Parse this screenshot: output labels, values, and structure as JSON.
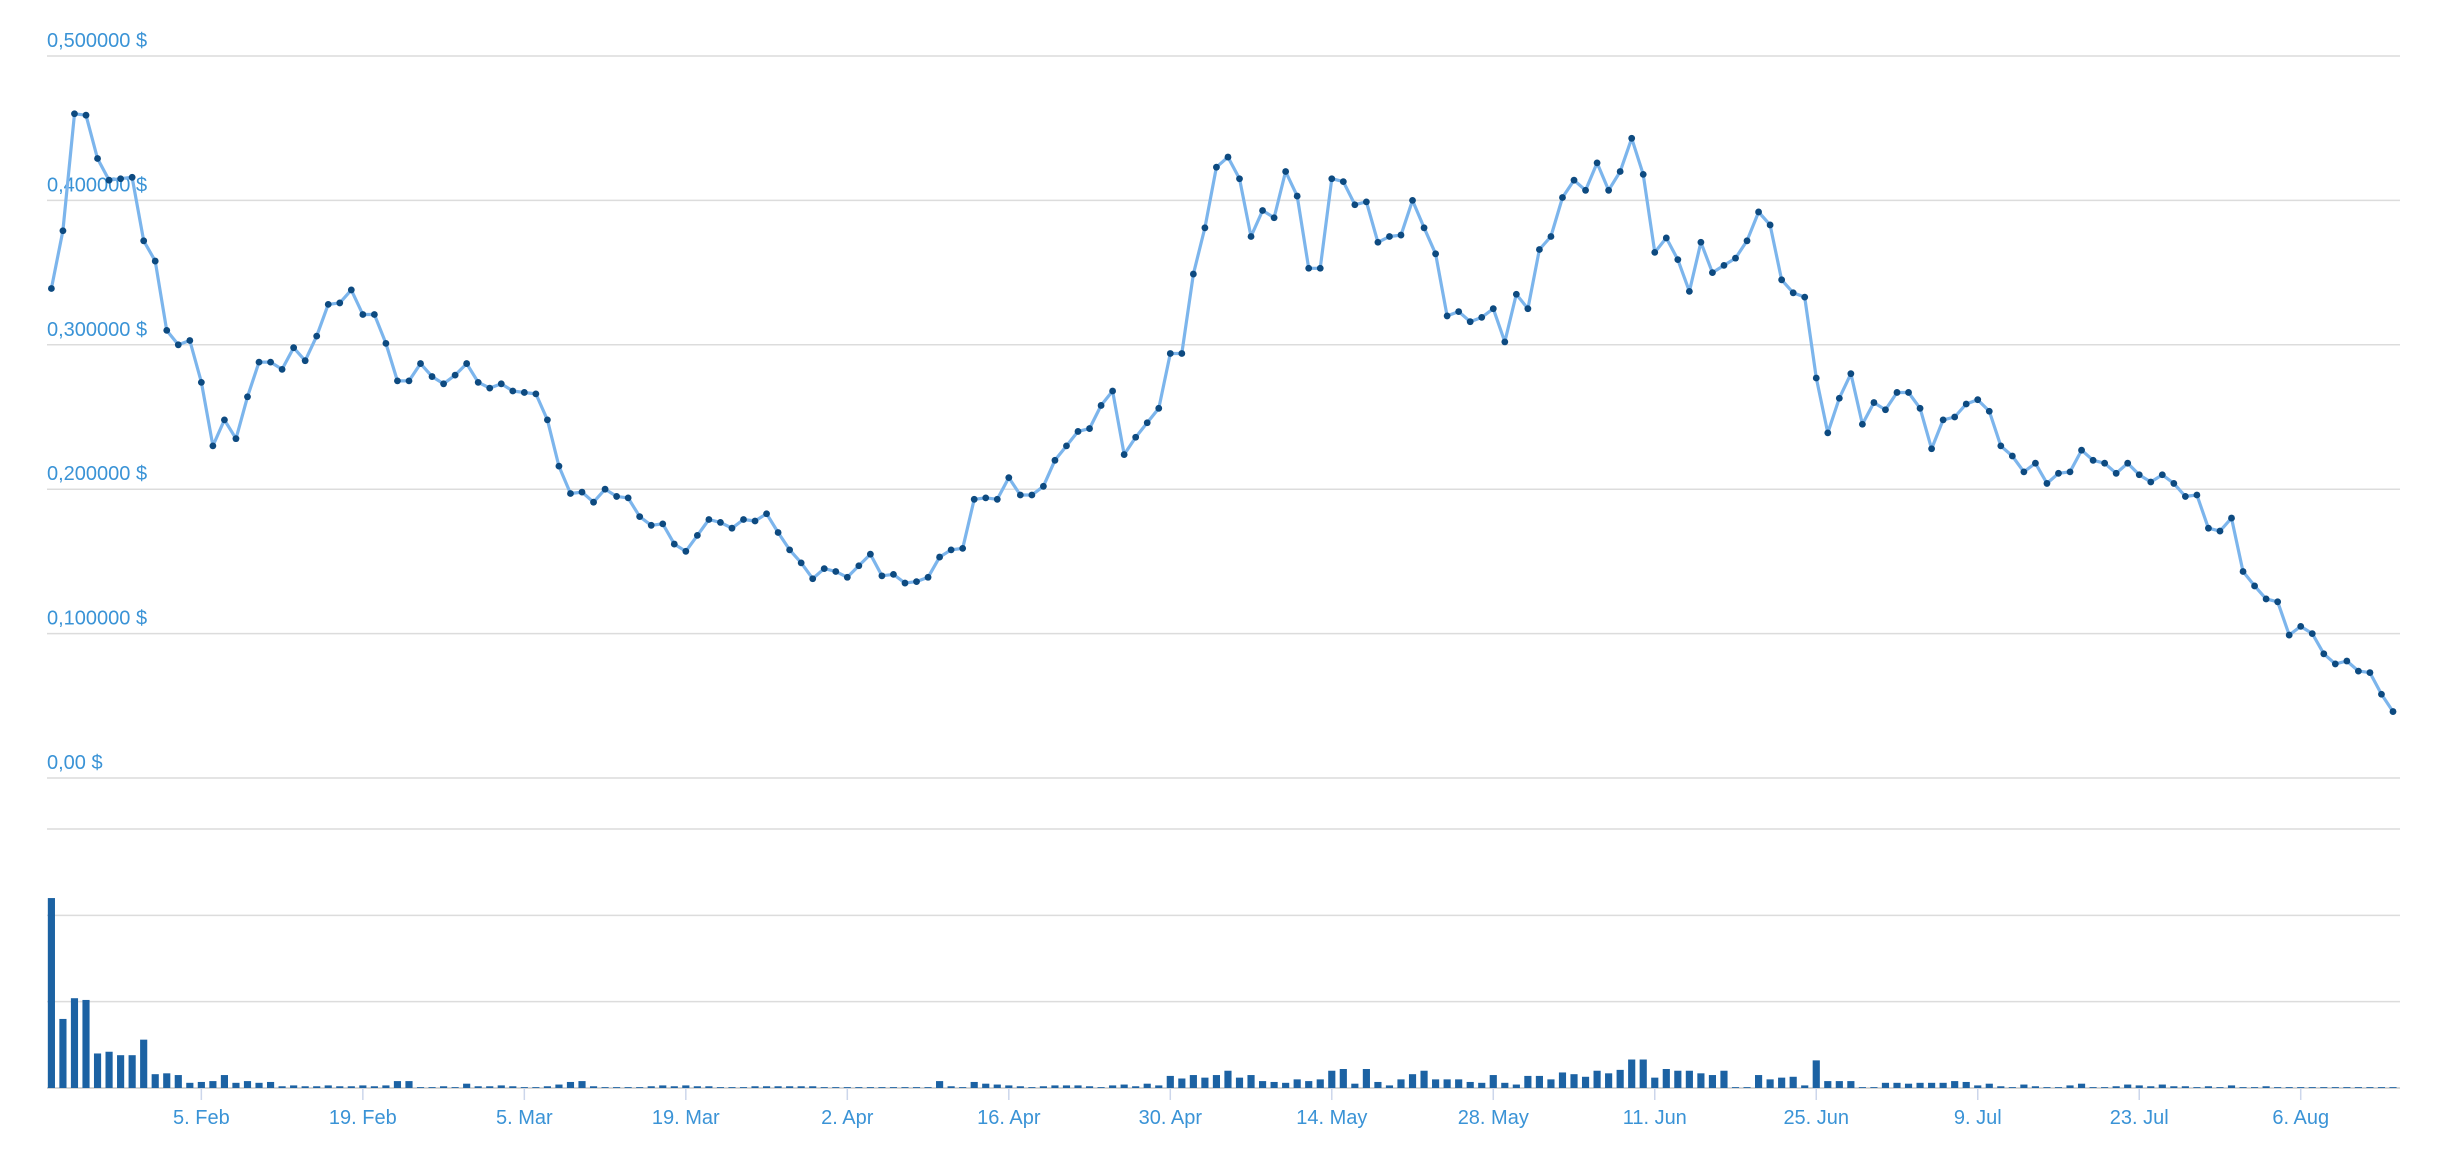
{
  "chart_data": {
    "type": "line",
    "categories": [
      null,
      null,
      null,
      null,
      null,
      null,
      null,
      null,
      null,
      null,
      null,
      null,
      null,
      "5. Feb",
      null,
      null,
      null,
      null,
      null,
      null,
      null,
      null,
      null,
      null,
      null,
      null,
      null,
      "19. Feb",
      null,
      null,
      null,
      null,
      null,
      null,
      null,
      null,
      null,
      null,
      null,
      null,
      null,
      "5. Mar",
      null,
      null,
      null,
      null,
      null,
      null,
      null,
      null,
      null,
      null,
      null,
      null,
      null,
      "19. Mar",
      null,
      null,
      null,
      null,
      null,
      null,
      null,
      null,
      null,
      null,
      null,
      null,
      null,
      "2. Apr",
      null,
      null,
      null,
      null,
      null,
      null,
      null,
      null,
      null,
      null,
      null,
      null,
      null,
      "16. Apr",
      null,
      null,
      null,
      null,
      null,
      null,
      null,
      null,
      null,
      null,
      null,
      null,
      null,
      "30. Apr",
      null,
      null,
      null,
      null,
      null,
      null,
      null,
      null,
      null,
      null,
      null,
      null,
      null,
      "14. May",
      null,
      null,
      null,
      null,
      null,
      null,
      null,
      null,
      null,
      null,
      null,
      null,
      null,
      "28. May",
      null,
      null,
      null,
      null,
      null,
      null,
      null,
      null,
      null,
      null,
      null,
      null,
      null,
      "11. Jun",
      null,
      null,
      null,
      null,
      null,
      null,
      null,
      null,
      null,
      null,
      null,
      null,
      null,
      "25. Jun",
      null,
      null,
      null,
      null,
      null,
      null,
      null,
      null,
      null,
      null,
      null,
      null,
      null,
      "9. Jul",
      null,
      null,
      null,
      null,
      null,
      null,
      null,
      null,
      null,
      null,
      null,
      null,
      null,
      "23. Jul",
      null,
      null,
      null,
      null,
      null,
      null,
      null,
      null,
      null,
      null,
      null,
      null,
      null,
      "6. Aug",
      null,
      null,
      null,
      null,
      null,
      null,
      null,
      null
    ],
    "series": [
      {
        "type": "line",
        "color": "#7cb5ec",
        "marker_color": "#0d4a80",
        "values": [
          0.339,
          0.379,
          0.46,
          0.459,
          0.429,
          0.414,
          0.415,
          0.416,
          0.372,
          0.358,
          0.31,
          0.3,
          0.303,
          0.274,
          0.23,
          0.248,
          0.235,
          0.264,
          0.288,
          0.288,
          0.283,
          0.298,
          0.289,
          0.306,
          0.328,
          0.329,
          0.338,
          0.321,
          0.321,
          0.301,
          0.275,
          0.275,
          0.287,
          0.278,
          0.273,
          0.279,
          0.287,
          0.274,
          0.27,
          0.273,
          0.268,
          0.267,
          0.266,
          0.248,
          0.216,
          0.197,
          0.198,
          0.191,
          0.2,
          0.195,
          0.194,
          0.181,
          0.175,
          0.176,
          0.162,
          0.157,
          0.168,
          0.179,
          0.177,
          0.173,
          0.179,
          0.178,
          0.183,
          0.17,
          0.158,
          0.149,
          0.138,
          0.145,
          0.143,
          0.139,
          0.147,
          0.155,
          0.14,
          0.141,
          0.135,
          0.136,
          0.139,
          0.153,
          0.158,
          0.159,
          0.193,
          0.194,
          0.193,
          0.208,
          0.196,
          0.196,
          0.202,
          0.22,
          0.23,
          0.24,
          0.242,
          0.258,
          0.268,
          0.224,
          0.236,
          0.246,
          0.256,
          0.294,
          0.294,
          0.349,
          0.381,
          0.423,
          0.43,
          0.415,
          0.375,
          0.393,
          0.388,
          0.42,
          0.403,
          0.353,
          0.353,
          0.415,
          0.413,
          0.397,
          0.399,
          0.371,
          0.375,
          0.376,
          0.4,
          0.381,
          0.363,
          0.32,
          0.323,
          0.316,
          0.319,
          0.325,
          0.302,
          0.335,
          0.325,
          0.366,
          0.375,
          0.402,
          0.414,
          0.407,
          0.426,
          0.407,
          0.42,
          0.443,
          0.418,
          0.364,
          0.374,
          0.359,
          0.337,
          0.371,
          0.35,
          0.355,
          0.36,
          0.372,
          0.392,
          0.383,
          0.345,
          0.336,
          0.333,
          0.277,
          0.239,
          0.263,
          0.28,
          0.245,
          0.26,
          0.255,
          0.267,
          0.267,
          0.256,
          0.228,
          0.248,
          0.25,
          0.259,
          0.262,
          0.254,
          0.23,
          0.223,
          0.212,
          0.218,
          0.204,
          0.211,
          0.212,
          0.227,
          0.22,
          0.218,
          0.211,
          0.218,
          0.21,
          0.205,
          0.21,
          0.204,
          0.195,
          0.196,
          0.173,
          0.171,
          0.18,
          0.143,
          0.133,
          0.124,
          0.122,
          0.099,
          0.105,
          0.1,
          0.086,
          0.079,
          0.081,
          0.074,
          0.073,
          0.058,
          0.046
        ]
      },
      {
        "type": "bar",
        "axis": "y2",
        "color": "#1c62a3",
        "values": [
          2.2,
          0.8,
          1.04,
          1.02,
          0.4,
          0.42,
          0.38,
          0.38,
          0.56,
          0.16,
          0.17,
          0.15,
          0.06,
          0.07,
          0.08,
          0.15,
          0.06,
          0.08,
          0.06,
          0.07,
          0.02,
          0.03,
          0.02,
          0.02,
          0.03,
          0.02,
          0.02,
          0.03,
          0.02,
          0.03,
          0.08,
          0.08,
          0.01,
          0.01,
          0.02,
          0.01,
          0.05,
          0.02,
          0.02,
          0.03,
          0.02,
          0.01,
          0.01,
          0.02,
          0.04,
          0.07,
          0.08,
          0.02,
          0.01,
          0.01,
          0.01,
          0.01,
          0.02,
          0.03,
          0.02,
          0.03,
          0.02,
          0.02,
          0.01,
          0.01,
          0.01,
          0.02,
          0.02,
          0.02,
          0.02,
          0.02,
          0.02,
          0.01,
          0.01,
          0.01,
          0.01,
          0.01,
          0.01,
          0.01,
          0.01,
          0.01,
          0.01,
          0.08,
          0.02,
          0.01,
          0.07,
          0.05,
          0.04,
          0.03,
          0.02,
          0.01,
          0.02,
          0.03,
          0.03,
          0.03,
          0.02,
          0.01,
          0.03,
          0.04,
          0.02,
          0.05,
          0.03,
          0.14,
          0.11,
          0.15,
          0.12,
          0.15,
          0.2,
          0.12,
          0.15,
          0.08,
          0.07,
          0.06,
          0.1,
          0.08,
          0.1,
          0.2,
          0.22,
          0.05,
          0.22,
          0.07,
          0.03,
          0.1,
          0.16,
          0.2,
          0.1,
          0.1,
          0.1,
          0.07,
          0.06,
          0.15,
          0.06,
          0.04,
          0.14,
          0.14,
          0.1,
          0.18,
          0.16,
          0.13,
          0.2,
          0.17,
          0.21,
          0.33,
          0.33,
          0.12,
          0.22,
          0.2,
          0.2,
          0.17,
          0.15,
          0.2,
          0.01,
          0.01,
          0.15,
          0.1,
          0.12,
          0.13,
          0.03,
          0.32,
          0.08,
          0.08,
          0.08,
          0.01,
          0.01,
          0.06,
          0.06,
          0.05,
          0.06,
          0.06,
          0.06,
          0.08,
          0.07,
          0.03,
          0.05,
          0.02,
          0.01,
          0.04,
          0.02,
          0.01,
          0.01,
          0.03,
          0.05,
          0.01,
          0.01,
          0.02,
          0.04,
          0.03,
          0.02,
          0.04,
          0.02,
          0.02,
          0.01,
          0.02,
          0.01,
          0.03,
          0.01,
          0.01,
          0.02,
          0.01,
          0.01,
          0.01,
          0.01,
          0.01,
          0.01,
          0.01,
          0.01,
          0.01,
          0.01,
          0.01
        ]
      }
    ],
    "ylim": [
      0,
      0.5
    ],
    "yticks": [
      {
        "value": 0,
        "label": "0,00 $"
      },
      {
        "value": 0.1,
        "label": "0,100000 $"
      },
      {
        "value": 0.2,
        "label": "0,200000 $"
      },
      {
        "value": 0.3,
        "label": "0,300000 $"
      },
      {
        "value": 0.4,
        "label": "0,400000 $"
      },
      {
        "value": 0.5,
        "label": "0,500000 $"
      }
    ],
    "y2lim": [
      0,
      3
    ],
    "y2ticks": [
      0,
      1,
      2,
      3
    ],
    "grid": true
  }
}
